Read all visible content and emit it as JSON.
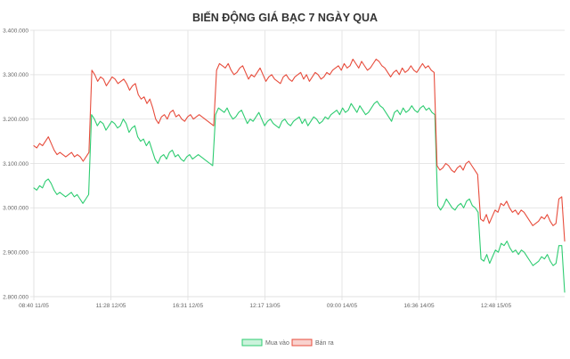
{
  "chart_data": {
    "type": "line",
    "title": "BIẾN ĐỘNG GIÁ BẠC 7 NGÀY QUA",
    "x_tick_labels": [
      "08:40 11/05",
      "11:28 12/05",
      "16:31 12/05",
      "12:17 13/05",
      "09:00 14/05",
      "16:36 14/05",
      "12:48 15/05"
    ],
    "y_tick_labels": [
      "2.800.000",
      "2.900.000",
      "3.000.000",
      "3.100.000",
      "3.200.000",
      "3.300.000",
      "3.400.000"
    ],
    "ylim": [
      2800000,
      3400000
    ],
    "grid": true,
    "legend_position": "bottom",
    "series": [
      {
        "name": "Mua vào",
        "color": "#2ecc71",
        "values": [
          3045000,
          3040000,
          3050000,
          3045000,
          3060000,
          3065000,
          3055000,
          3040000,
          3030000,
          3035000,
          3030000,
          3025000,
          3030000,
          3035000,
          3025000,
          3030000,
          3020000,
          3010000,
          3020000,
          3030000,
          3210000,
          3200000,
          3185000,
          3195000,
          3190000,
          3175000,
          3185000,
          3195000,
          3190000,
          3180000,
          3185000,
          3200000,
          3190000,
          3170000,
          3180000,
          3185000,
          3160000,
          3150000,
          3155000,
          3140000,
          3150000,
          3130000,
          3110000,
          3100000,
          3115000,
          3120000,
          3110000,
          3125000,
          3130000,
          3115000,
          3120000,
          3110000,
          3105000,
          3115000,
          3120000,
          3110000,
          3115000,
          3120000,
          3115000,
          3110000,
          3105000,
          3100000,
          3095000,
          3210000,
          3225000,
          3220000,
          3215000,
          3225000,
          3210000,
          3200000,
          3205000,
          3215000,
          3220000,
          3205000,
          3190000,
          3200000,
          3195000,
          3205000,
          3215000,
          3200000,
          3185000,
          3195000,
          3200000,
          3190000,
          3185000,
          3180000,
          3195000,
          3200000,
          3190000,
          3185000,
          3195000,
          3200000,
          3205000,
          3190000,
          3200000,
          3185000,
          3195000,
          3205000,
          3200000,
          3190000,
          3195000,
          3205000,
          3200000,
          3210000,
          3215000,
          3220000,
          3210000,
          3225000,
          3215000,
          3220000,
          3235000,
          3225000,
          3215000,
          3230000,
          3220000,
          3210000,
          3215000,
          3225000,
          3235000,
          3240000,
          3230000,
          3225000,
          3215000,
          3205000,
          3195000,
          3215000,
          3220000,
          3210000,
          3225000,
          3215000,
          3220000,
          3230000,
          3220000,
          3215000,
          3225000,
          3230000,
          3220000,
          3225000,
          3215000,
          3210000,
          3005000,
          2995000,
          3005000,
          3020000,
          3010000,
          3000000,
          2995000,
          3005000,
          3010000,
          3000000,
          3015000,
          3020000,
          3005000,
          3000000,
          2990000,
          2885000,
          2880000,
          2895000,
          2875000,
          2890000,
          2905000,
          2900000,
          2920000,
          2915000,
          2925000,
          2910000,
          2900000,
          2905000,
          2895000,
          2905000,
          2900000,
          2890000,
          2880000,
          2870000,
          2875000,
          2880000,
          2890000,
          2885000,
          2895000,
          2880000,
          2870000,
          2875000,
          2915000,
          2915000,
          2810000
        ]
      },
      {
        "name": "Bán ra",
        "color": "#e74c3c",
        "values": [
          3140000,
          3135000,
          3145000,
          3140000,
          3150000,
          3160000,
          3145000,
          3130000,
          3120000,
          3125000,
          3120000,
          3115000,
          3120000,
          3125000,
          3115000,
          3120000,
          3115000,
          3105000,
          3115000,
          3125000,
          3310000,
          3300000,
          3285000,
          3295000,
          3290000,
          3275000,
          3285000,
          3295000,
          3290000,
          3280000,
          3285000,
          3290000,
          3280000,
          3265000,
          3275000,
          3280000,
          3255000,
          3245000,
          3250000,
          3235000,
          3245000,
          3225000,
          3200000,
          3190000,
          3205000,
          3210000,
          3200000,
          3215000,
          3220000,
          3205000,
          3210000,
          3200000,
          3195000,
          3205000,
          3210000,
          3200000,
          3205000,
          3210000,
          3205000,
          3200000,
          3195000,
          3190000,
          3185000,
          3310000,
          3325000,
          3320000,
          3315000,
          3325000,
          3310000,
          3300000,
          3305000,
          3315000,
          3320000,
          3305000,
          3290000,
          3300000,
          3295000,
          3305000,
          3315000,
          3300000,
          3285000,
          3295000,
          3300000,
          3290000,
          3285000,
          3280000,
          3295000,
          3300000,
          3290000,
          3285000,
          3295000,
          3300000,
          3305000,
          3290000,
          3300000,
          3285000,
          3295000,
          3305000,
          3300000,
          3290000,
          3295000,
          3305000,
          3300000,
          3310000,
          3315000,
          3320000,
          3310000,
          3325000,
          3315000,
          3320000,
          3335000,
          3325000,
          3315000,
          3330000,
          3320000,
          3310000,
          3315000,
          3325000,
          3335000,
          3330000,
          3320000,
          3315000,
          3305000,
          3295000,
          3305000,
          3310000,
          3300000,
          3315000,
          3305000,
          3310000,
          3320000,
          3310000,
          3305000,
          3315000,
          3325000,
          3315000,
          3320000,
          3310000,
          3305000,
          3095000,
          3085000,
          3090000,
          3100000,
          3095000,
          3085000,
          3080000,
          3090000,
          3095000,
          3085000,
          3100000,
          3105000,
          3095000,
          3085000,
          3075000,
          2975000,
          2970000,
          2985000,
          2965000,
          2980000,
          2995000,
          2990000,
          3010000,
          3005000,
          3015000,
          3000000,
          2990000,
          2995000,
          2985000,
          2995000,
          2990000,
          2980000,
          2970000,
          2960000,
          2965000,
          2970000,
          2980000,
          2975000,
          2985000,
          2970000,
          2960000,
          2965000,
          3020000,
          3025000,
          2925000
        ]
      }
    ]
  }
}
